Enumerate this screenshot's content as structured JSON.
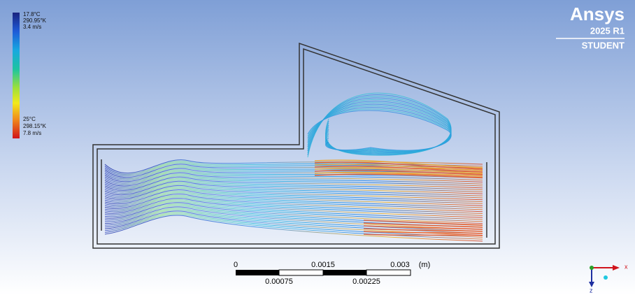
{
  "legend": {
    "min": {
      "temperature": "17.8°C",
      "temperature_kelvin": "290.95°K",
      "velocity": "3.4 m/s"
    },
    "max": {
      "temperature": "25°C",
      "temperature_kelvin": "298.15°K",
      "velocity": "7.8 m/s"
    }
  },
  "logo": {
    "brand": "Ansys",
    "version": "2025 R1",
    "edition": "STUDENT"
  },
  "scale_bar": {
    "top_labels": [
      "0",
      "0.0015",
      "0.003"
    ],
    "unit": "(m)",
    "bottom_labels": [
      "0.00075",
      "0.00225"
    ]
  },
  "triad": {
    "x": "x",
    "z": "z"
  }
}
